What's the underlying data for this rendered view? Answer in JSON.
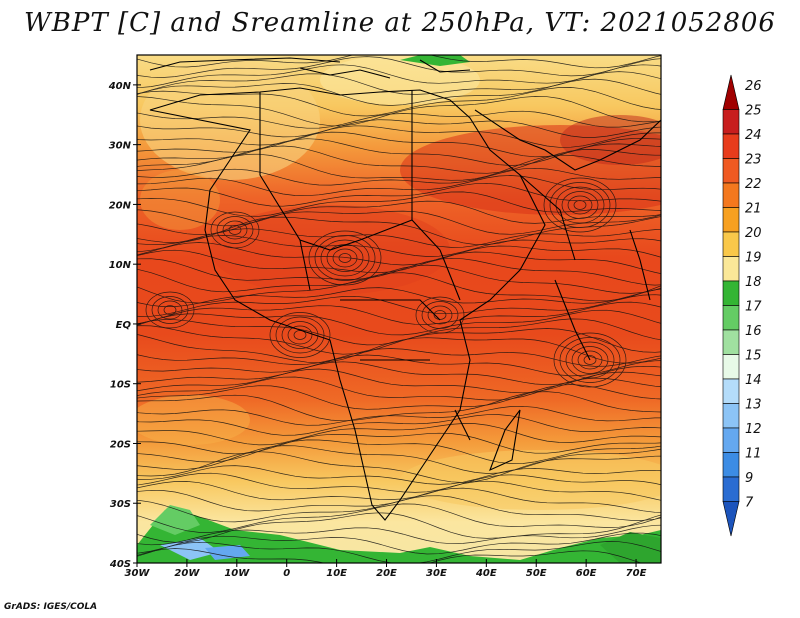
{
  "title": "WBPT [C] and Sreamline at 250hPa, VT: 2021052806",
  "credit": "GrADS: IGES/COLA",
  "map": {
    "lon_ticks": [
      "30W",
      "20W",
      "10W",
      "0",
      "10E",
      "20E",
      "30E",
      "40E",
      "50E",
      "60E",
      "70E"
    ],
    "lat_ticks": [
      "40N",
      "30N",
      "20N",
      "10N",
      "EQ",
      "10S",
      "20S",
      "30S",
      "40S"
    ],
    "lon_range": [
      -30,
      75
    ],
    "lat_range": [
      -40,
      45
    ]
  },
  "colorbar": {
    "labels": [
      "26",
      "25",
      "24",
      "23",
      "22",
      "21",
      "20",
      "19",
      "18",
      "17",
      "16",
      "15",
      "14",
      "13",
      "12",
      "11",
      "9",
      "7"
    ],
    "colors": [
      "#a00000",
      "#c81e1e",
      "#e83c1c",
      "#f05a22",
      "#f4781e",
      "#f7a020",
      "#f9c84a",
      "#fbe898",
      "#34b534",
      "#64cc64",
      "#a0e0a0",
      "#e8fae8",
      "#b4dcfa",
      "#8cc4f6",
      "#64a8f0",
      "#3c8ce4",
      "#2a6cd2",
      "#1c54bc"
    ]
  }
}
